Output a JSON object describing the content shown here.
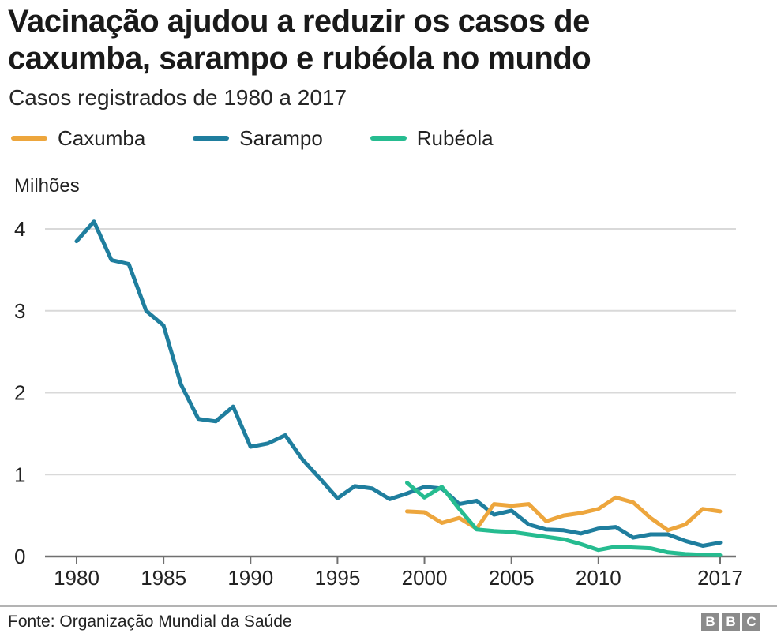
{
  "header": {
    "title_line1": "Vacinação ajudou a reduzir os casos de",
    "title_line2": "caxumba, sarampo e rubéola no mundo",
    "subtitle": "Casos registrados de 1980 a 2017"
  },
  "legend": [
    {
      "label": "Caxumba",
      "color": "#EDA63D"
    },
    {
      "label": "Sarampo",
      "color": "#1F7E9E"
    },
    {
      "label": "Rubéola",
      "color": "#26BC90"
    }
  ],
  "chart_data": {
    "type": "line",
    "title": "Vacinação ajudou a reduzir os casos de caxumba, sarampo e rubéola no mundo",
    "subtitle": "Casos registrados de 1980 a 2017",
    "unit_label": "Milhões",
    "xlabel": "",
    "ylabel": "Milhões",
    "xlim": [
      1980,
      2017
    ],
    "ylim": [
      0,
      4.3
    ],
    "grid": true,
    "legend_position": "top",
    "x_ticks": [
      1980,
      1985,
      1990,
      1995,
      2000,
      2005,
      2010,
      2017
    ],
    "y_ticks": [
      0,
      1,
      2,
      3,
      4
    ],
    "series": [
      {
        "name": "Sarampo",
        "color": "#1F7E9E",
        "points": [
          [
            1980,
            3.85
          ],
          [
            1981,
            4.09
          ],
          [
            1982,
            3.62
          ],
          [
            1983,
            3.57
          ],
          [
            1984,
            3.0
          ],
          [
            1985,
            2.82
          ],
          [
            1986,
            2.1
          ],
          [
            1987,
            1.68
          ],
          [
            1988,
            1.65
          ],
          [
            1989,
            1.83
          ],
          [
            1990,
            1.34
          ],
          [
            1991,
            1.38
          ],
          [
            1992,
            1.48
          ],
          [
            1993,
            1.18
          ],
          [
            1994,
            0.95
          ],
          [
            1995,
            0.71
          ],
          [
            1996,
            0.86
          ],
          [
            1997,
            0.83
          ],
          [
            1998,
            0.7
          ],
          [
            1999,
            0.77
          ],
          [
            2000,
            0.85
          ],
          [
            2001,
            0.83
          ],
          [
            2002,
            0.64
          ],
          [
            2003,
            0.68
          ],
          [
            2004,
            0.51
          ],
          [
            2005,
            0.56
          ],
          [
            2006,
            0.39
          ],
          [
            2007,
            0.33
          ],
          [
            2008,
            0.32
          ],
          [
            2009,
            0.28
          ],
          [
            2010,
            0.34
          ],
          [
            2011,
            0.36
          ],
          [
            2012,
            0.23
          ],
          [
            2013,
            0.27
          ],
          [
            2014,
            0.27
          ],
          [
            2015,
            0.19
          ],
          [
            2016,
            0.13
          ],
          [
            2017,
            0.17
          ]
        ]
      },
      {
        "name": "Caxumba",
        "color": "#EDA63D",
        "points": [
          [
            1999,
            0.55
          ],
          [
            2000,
            0.54
          ],
          [
            2001,
            0.41
          ],
          [
            2002,
            0.47
          ],
          [
            2003,
            0.34
          ],
          [
            2004,
            0.64
          ],
          [
            2005,
            0.62
          ],
          [
            2006,
            0.64
          ],
          [
            2007,
            0.43
          ],
          [
            2008,
            0.5
          ],
          [
            2009,
            0.53
          ],
          [
            2010,
            0.58
          ],
          [
            2011,
            0.72
          ],
          [
            2012,
            0.66
          ],
          [
            2013,
            0.47
          ],
          [
            2014,
            0.32
          ],
          [
            2015,
            0.39
          ],
          [
            2016,
            0.58
          ],
          [
            2017,
            0.55
          ]
        ]
      },
      {
        "name": "Rubéola",
        "color": "#26BC90",
        "points": [
          [
            1999,
            0.9
          ],
          [
            2000,
            0.72
          ],
          [
            2001,
            0.85
          ],
          [
            2002,
            0.58
          ],
          [
            2003,
            0.33
          ],
          [
            2004,
            0.31
          ],
          [
            2005,
            0.3
          ],
          [
            2006,
            0.27
          ],
          [
            2007,
            0.24
          ],
          [
            2008,
            0.21
          ],
          [
            2009,
            0.15
          ],
          [
            2010,
            0.08
          ],
          [
            2011,
            0.12
          ],
          [
            2012,
            0.11
          ],
          [
            2013,
            0.1
          ],
          [
            2014,
            0.05
          ],
          [
            2015,
            0.03
          ],
          [
            2016,
            0.02
          ],
          [
            2017,
            0.015
          ]
        ]
      }
    ]
  },
  "footer": {
    "source": "Fonte: Organização Mundial da Saúde",
    "logo_letters": [
      "B",
      "B",
      "C"
    ]
  }
}
